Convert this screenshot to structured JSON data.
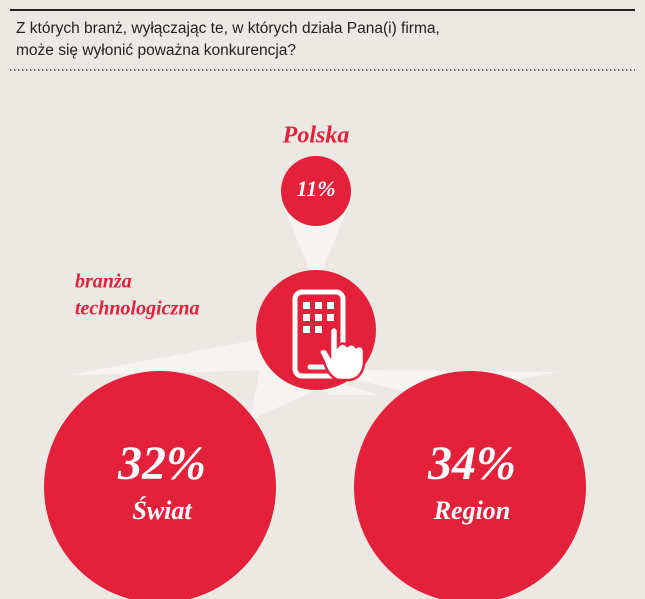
{
  "question": [
    "Z których branż, wyłączając te, w których działa Pana(i) firma,",
    "może się wyłonić poważna konkurencja?"
  ],
  "top": {
    "label": "Polska",
    "value": "11%"
  },
  "sector": [
    "branża",
    "technologiczna"
  ],
  "items": [
    {
      "value": "32%",
      "label": "Świat"
    },
    {
      "value": "34%",
      "label": "Region"
    }
  ]
}
